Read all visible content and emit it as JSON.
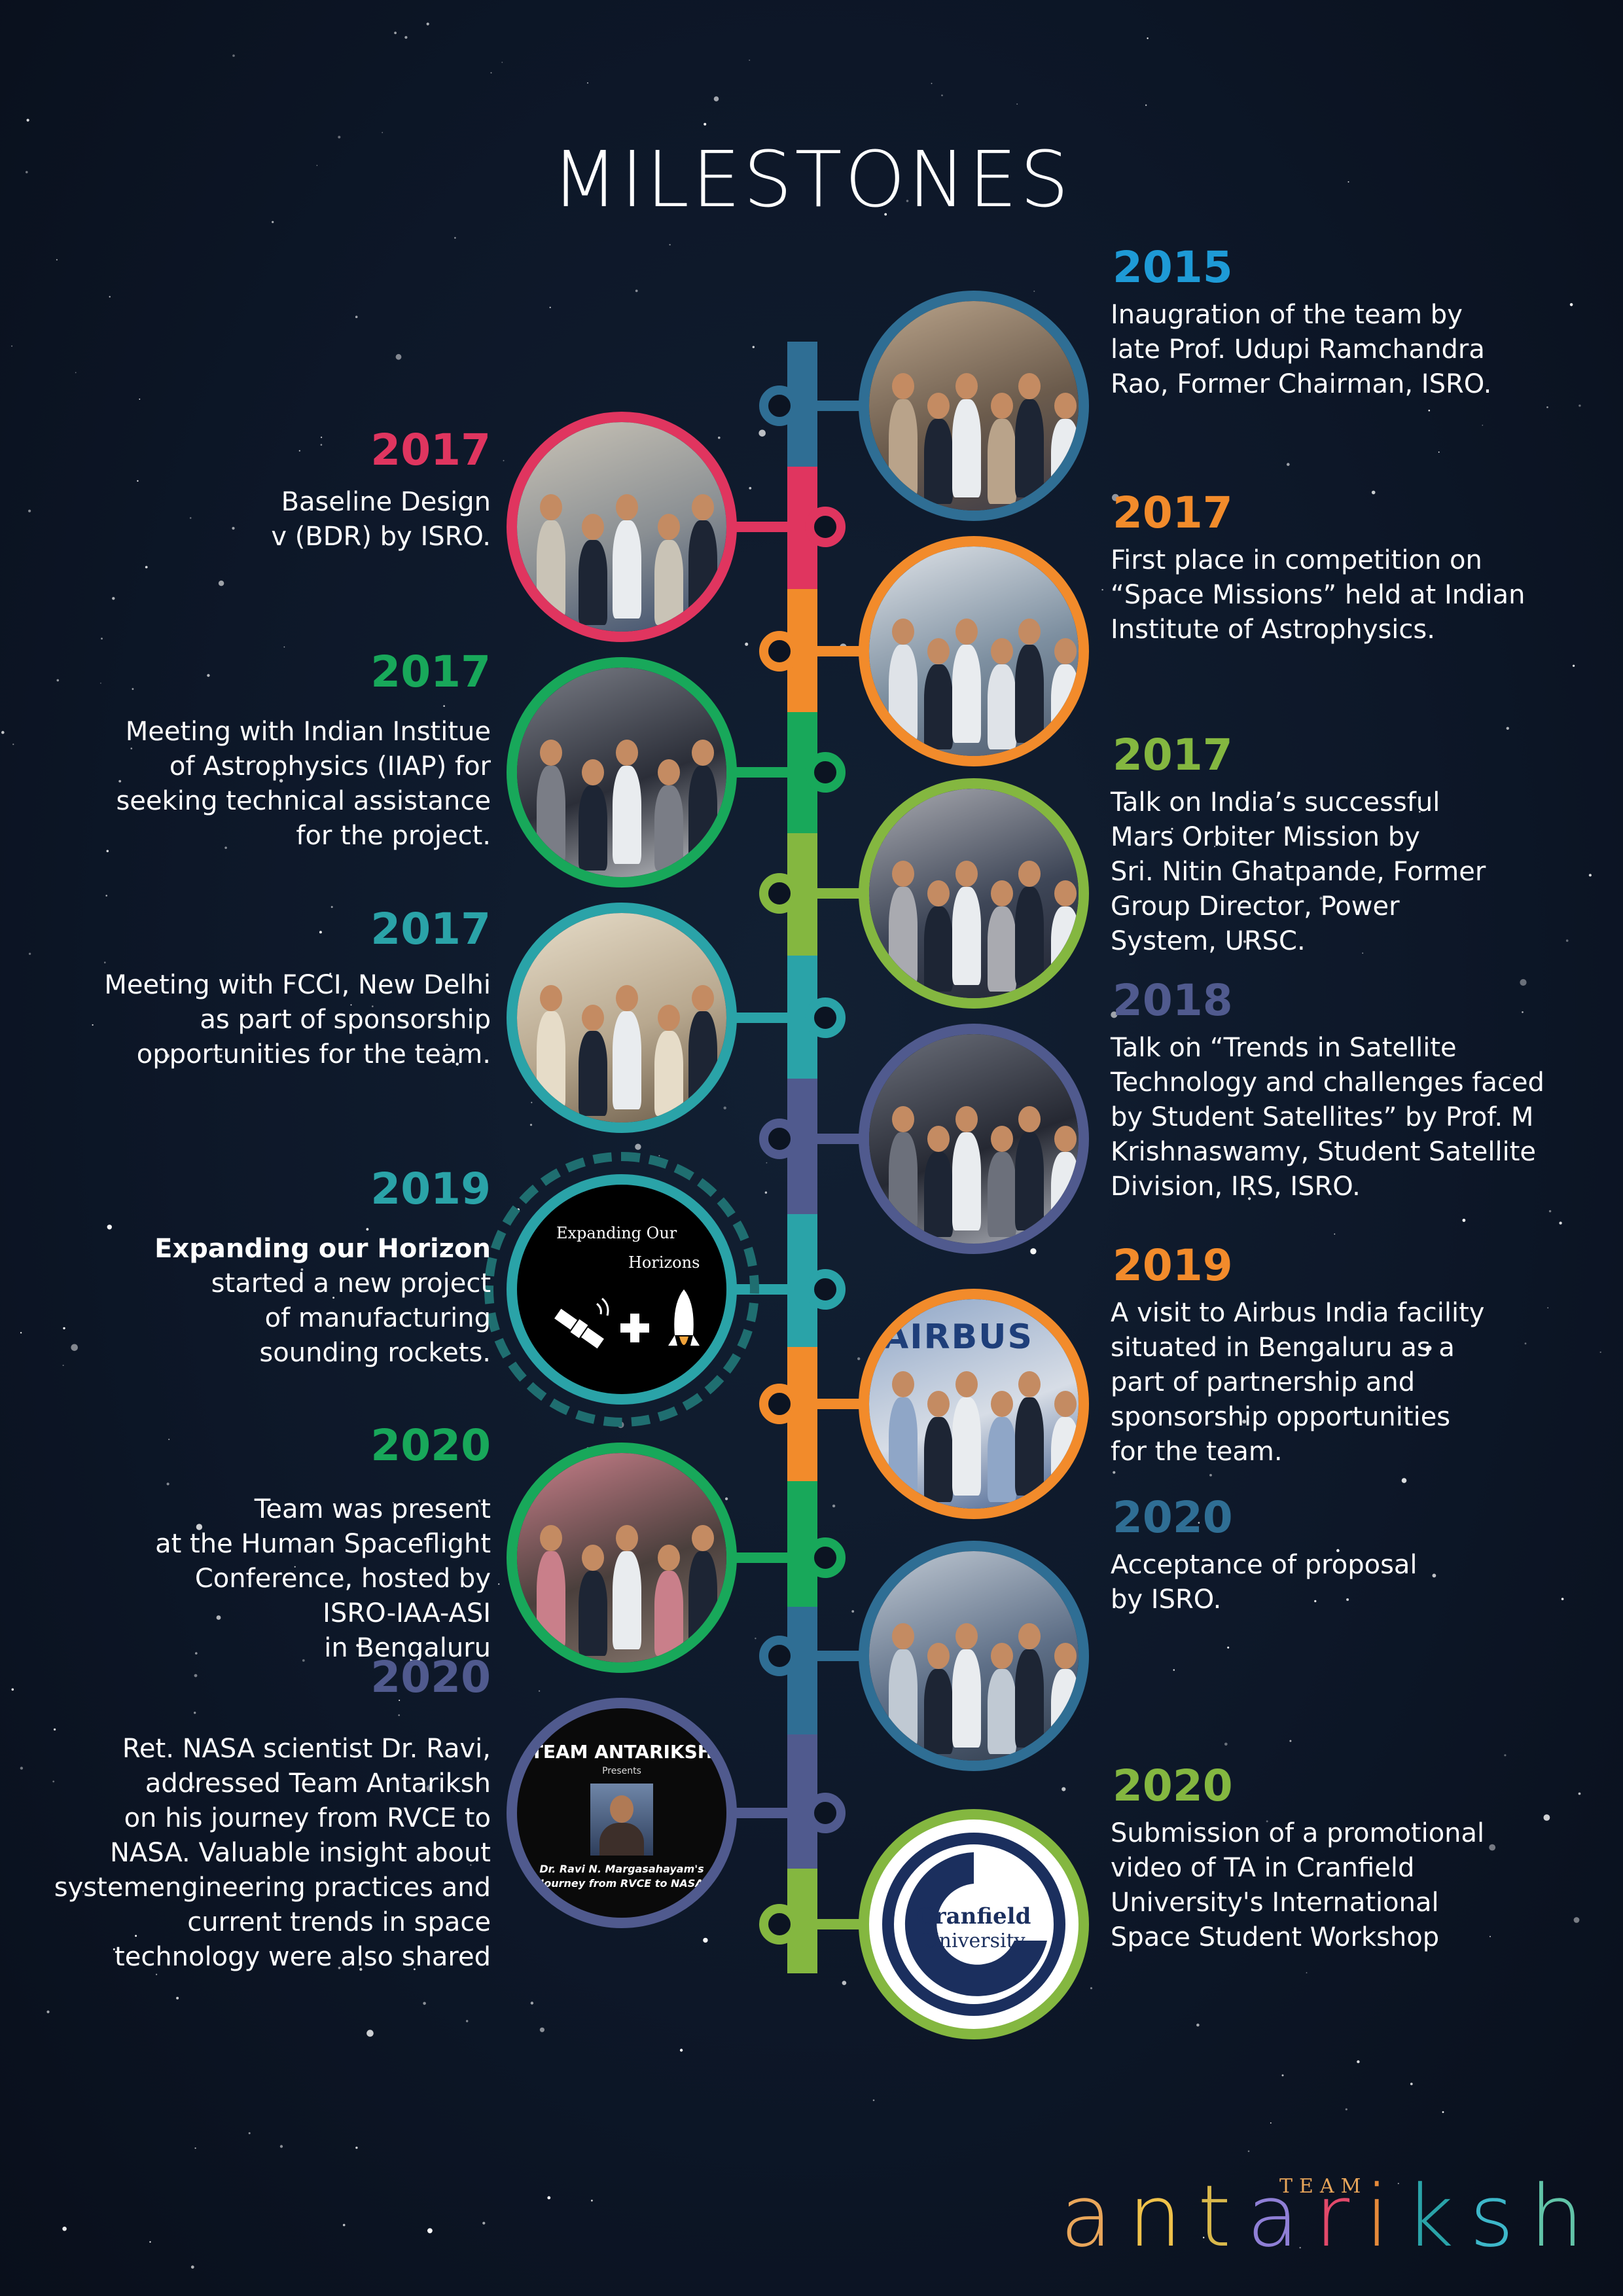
{
  "title": "MILESTONES",
  "colors": {
    "background": "#0c1422",
    "blue": "#2f6e94",
    "pink": "#e0355f",
    "orange": "#f28b2b",
    "green": "#18a85a",
    "lime": "#84b740",
    "teal": "#2aa3a8",
    "purple": "#505a8e",
    "year_blue": "#1e9ad6"
  },
  "milestones": [
    {
      "side": "right",
      "year": "2015",
      "color": "#2f6e94",
      "year_color": "#1e9ad6",
      "image": "photo-inauguration",
      "lines": [
        "Inaugration of the team by",
        "late Prof. Udupi Ramchandra",
        "Rao, Former Chairman, ISRO."
      ]
    },
    {
      "side": "left",
      "year": "2017",
      "color": "#e0355f",
      "year_color": "#e0355f",
      "image": "photo-bdr-group",
      "lines": [
        "Baseline Design",
        "v (BDR) by ISRO."
      ]
    },
    {
      "side": "right",
      "year": "2017",
      "color": "#f28b2b",
      "year_color": "#f28b2b",
      "image": "photo-presentation",
      "lines": [
        "First place in competition on",
        "“Space Missions” held at Indian",
        "Institute of Astrophysics."
      ]
    },
    {
      "side": "left",
      "year": "2017",
      "color": "#18a85a",
      "year_color": "#18a85a",
      "image": "photo-iiap-meeting",
      "lines": [
        "Meeting with Indian Institue",
        "of Astrophysics (IIAP) for",
        "seeking technical assistance",
        "for the project."
      ]
    },
    {
      "side": "right",
      "year": "2017",
      "color": "#84b740",
      "year_color": "#84b740",
      "image": "photo-mars-talk",
      "lines": [
        "Talk on India’s successful",
        "Mars Orbiter Mission by",
        "Sri. Nitin Ghatpande, Former",
        "Group Director, Power",
        "System, URSC."
      ]
    },
    {
      "side": "left",
      "year": "2017",
      "color": "#2aa3a8",
      "year_color": "#2aa3a8",
      "image": "photo-fcci",
      "lines": [
        "Meeting with FCCI, New Delhi",
        "as part of sponsorship",
        "opportunities for the team."
      ]
    },
    {
      "side": "right",
      "year": "2018",
      "color": "#505a8e",
      "year_color": "#505a8e",
      "image": "photo-satellite-talk",
      "lines": [
        "Talk on “Trends in Satellite",
        "Technology and challenges faced",
        "by Student Satellites” by Prof. M",
        "Krishnaswamy, Student Satellite",
        "Division, IRS, ISRO."
      ]
    },
    {
      "side": "left",
      "year": "2019",
      "color": "#2aa3a8",
      "year_color": "#2aa3a8",
      "image": "expanding-horizons-graphic",
      "bold": "Expanding our Horizon",
      "lines": [
        "started a new project",
        "of manufacturing",
        "sounding rockets."
      ],
      "graphic": {
        "line1": "Expanding Our",
        "line2": "Horizons"
      }
    },
    {
      "side": "right",
      "year": "2019",
      "color": "#f28b2b",
      "year_color": "#f28b2b",
      "image": "photo-airbus",
      "lines": [
        "A visit to Airbus India facility",
        "situated in Bengaluru as a",
        "part of partnership and",
        "sponsorship opportunities",
        "for the team."
      ],
      "sign": "AIRBUS"
    },
    {
      "side": "left",
      "year": "2020",
      "color": "#18a85a",
      "year_color": "#18a85a",
      "image": "photo-spaceflight-conf",
      "lines": [
        "Team was present",
        "at the Human Spaceflight",
        "Conference, hosted by",
        "ISRO-IAA-ASI",
        "in Bengaluru"
      ]
    },
    {
      "side": "right",
      "year": "2020",
      "color": "#2f6e94",
      "year_color": "#2f6e94",
      "image": "photo-proposal",
      "lines": [
        "Acceptance of proposal",
        "by ISRO."
      ]
    },
    {
      "side": "left",
      "year": "2020",
      "color": "#505a8e",
      "year_color": "#505a8e",
      "image": "poster-dr-ravi",
      "lines": [
        "Ret. NASA scientist Dr. Ravi,",
        "addressed Team Antariksh",
        "on his journey from RVCE to",
        "NASA. Valuable insight about",
        "systemengineering practices and",
        "current trends in space",
        "technology were also shared"
      ],
      "poster": {
        "heading": "TEAM ANTARIKSH",
        "sub": "Presents",
        "caption1": "Dr. Ravi N. Margasahayam's",
        "caption2": "\"Journey from RVCE to NASA\""
      }
    },
    {
      "side": "right",
      "year": "2020",
      "color": "#84b740",
      "year_color": "#84b740",
      "image": "cranfield-logo",
      "lines": [
        "Submission of a promotional",
        "video of TA in Cranfield",
        "University's International",
        "Space Student Workshop"
      ],
      "logo": {
        "line1": "Cranfield",
        "line2": "University"
      }
    }
  ],
  "brand": {
    "team": "TEAM",
    "letters": [
      {
        "ch": "a",
        "color": "#e9a65a"
      },
      {
        "ch": "n",
        "color": "#f0c24a"
      },
      {
        "ch": "t",
        "color": "#d9b84b"
      },
      {
        "ch": "a",
        "color": "#8f7fd6"
      },
      {
        "ch": "r",
        "color": "#e2496a"
      },
      {
        "ch": "i",
        "color": "#e68a3a"
      },
      {
        "ch": "k",
        "color": "#2aa3a8"
      },
      {
        "ch": "s",
        "color": "#3db7c9"
      },
      {
        "ch": "h",
        "color": "#62c4a8"
      }
    ]
  }
}
